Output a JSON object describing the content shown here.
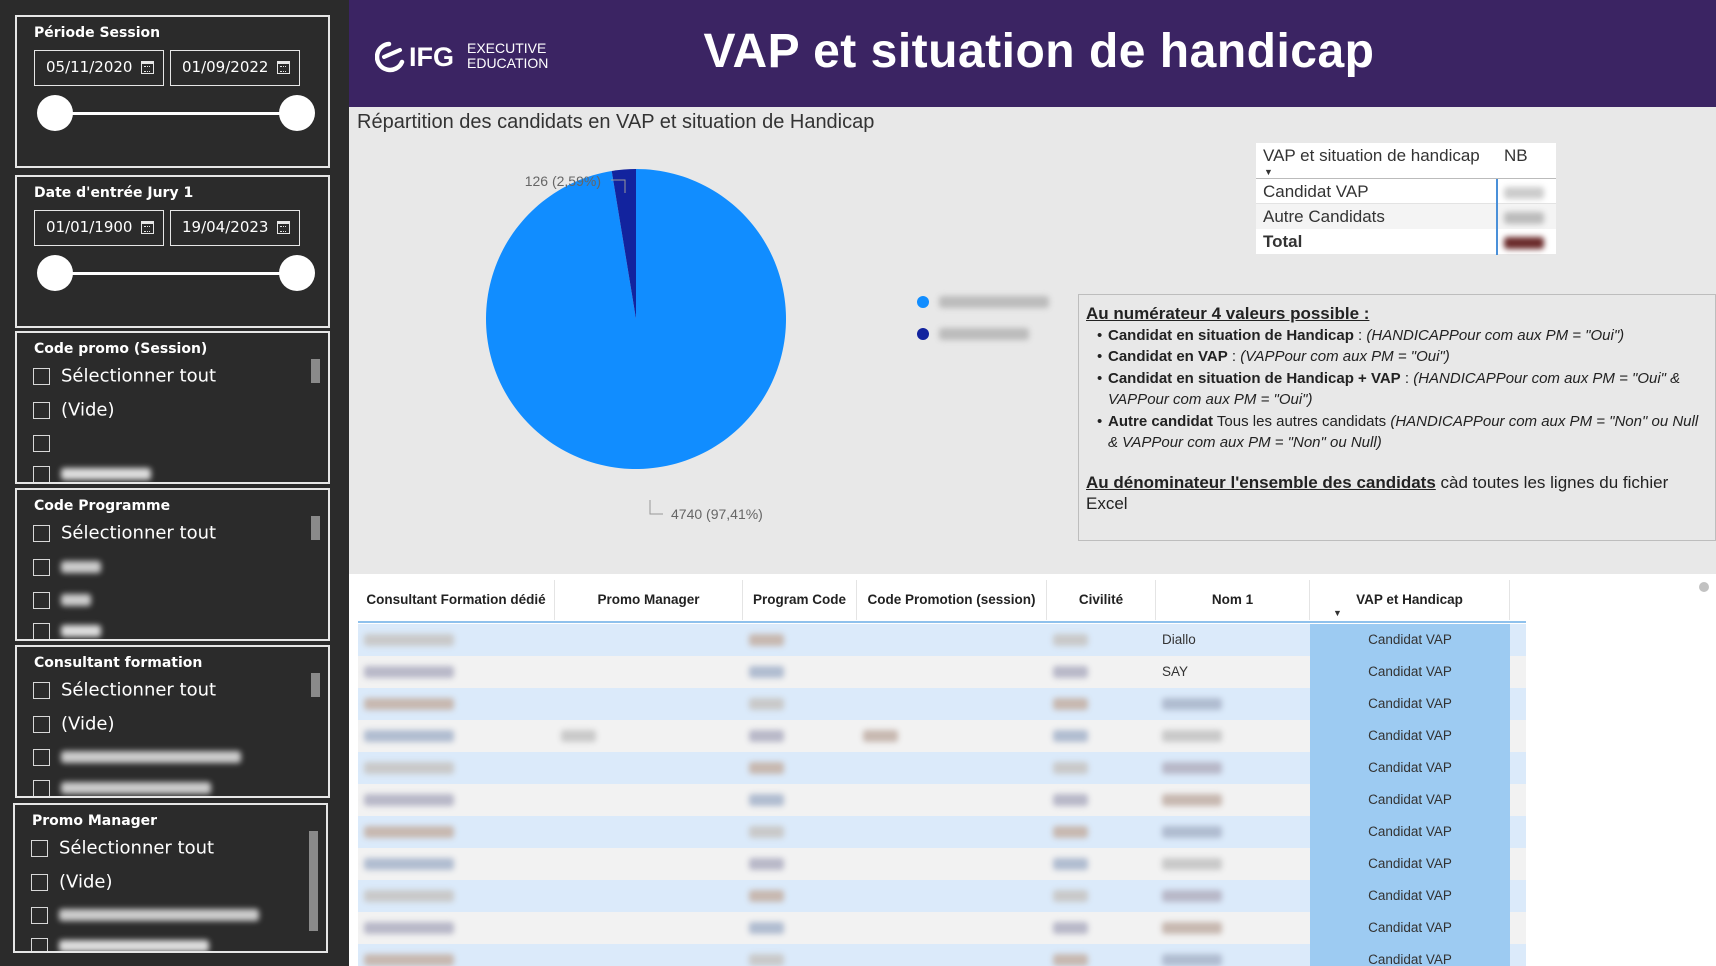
{
  "header": {
    "logo_text": "IFG EXECUTIVE EDUCATION",
    "title": "VAP et situation de handicap"
  },
  "slicers": {
    "periode_session": {
      "title": "Période Session",
      "start": "05/11/2020",
      "end": "01/09/2022"
    },
    "date_jury": {
      "title": "Date d'entrée Jury 1",
      "start": "01/01/1900",
      "end": "19/04/2023"
    },
    "code_promo": {
      "title": "Code promo (Session)",
      "items": [
        "Sélectionner tout",
        "(Vide)"
      ]
    },
    "code_programme": {
      "title": "Code Programme",
      "items": [
        "Sélectionner tout"
      ]
    },
    "consultant_formation": {
      "title": "Consultant formation",
      "items": [
        "Sélectionner tout",
        "(Vide)"
      ]
    },
    "promo_manager": {
      "title": "Promo Manager",
      "items": [
        "Sélectionner tout",
        "(Vide)"
      ]
    }
  },
  "chart_data": {
    "type": "pie",
    "title": "Répartition des candidats en VAP et situation de Handicap",
    "slices": [
      {
        "value": 4740,
        "label": "4740 (97,41%)",
        "color": "#118dff"
      },
      {
        "value": 126,
        "label": "126 (2,59%)",
        "color": "#12239e"
      }
    ]
  },
  "matrix": {
    "col1": "VAP et situation de handicap",
    "col2": "NB",
    "rows": [
      "Candidat VAP",
      "Autre Candidats"
    ],
    "total": "Total"
  },
  "notes": {
    "num_heading": "Au numérateur 4 valeurs possible :",
    "items": [
      {
        "bold": "Candidat en situation de Handicap",
        "plain": " : ",
        "italic": "(HANDICAPPour com aux PM = \"Oui\")"
      },
      {
        "bold": "Candidat en VAP",
        "plain": " : ",
        "italic": "(VAPPour com aux PM = \"Oui\")"
      },
      {
        "bold": "Candidat en situation de Handicap + VAP",
        "plain": " : ",
        "italic": "(HANDICAPPour com aux PM = \"Oui\" & VAPPour com aux PM = \"Oui\")"
      },
      {
        "bold": "Autre candidat",
        "plain": " Tous les autres candidats ",
        "italic": "(HANDICAPPour com aux PM = \"Non\" ou Null & VAPPour com aux PM = \"Non\" ou Null)"
      }
    ],
    "denom_heading": "Au dénominateur l'ensemble des candidats",
    "denom_text": " càd toutes les lignes du fichier Excel"
  },
  "table": {
    "columns": [
      "Consultant Formation dédié",
      "Promo Manager",
      "Program Code",
      "Code Promotion (session)",
      "Civilité",
      "Nom 1",
      "VAP et Handicap"
    ],
    "visible_cells": [
      {
        "col": 5,
        "row": 0,
        "text": "Diallo"
      },
      {
        "col": 5,
        "row": 1,
        "text": "SAY"
      }
    ],
    "vap_value": "Candidat VAP",
    "row_count": 11
  },
  "colors": {
    "header_bg": "#3b2463",
    "sidebar_bg": "#2b2b2b",
    "pie_main": "#118dff",
    "pie_minor": "#12239e",
    "vap_cell": "#9dcbf2"
  }
}
